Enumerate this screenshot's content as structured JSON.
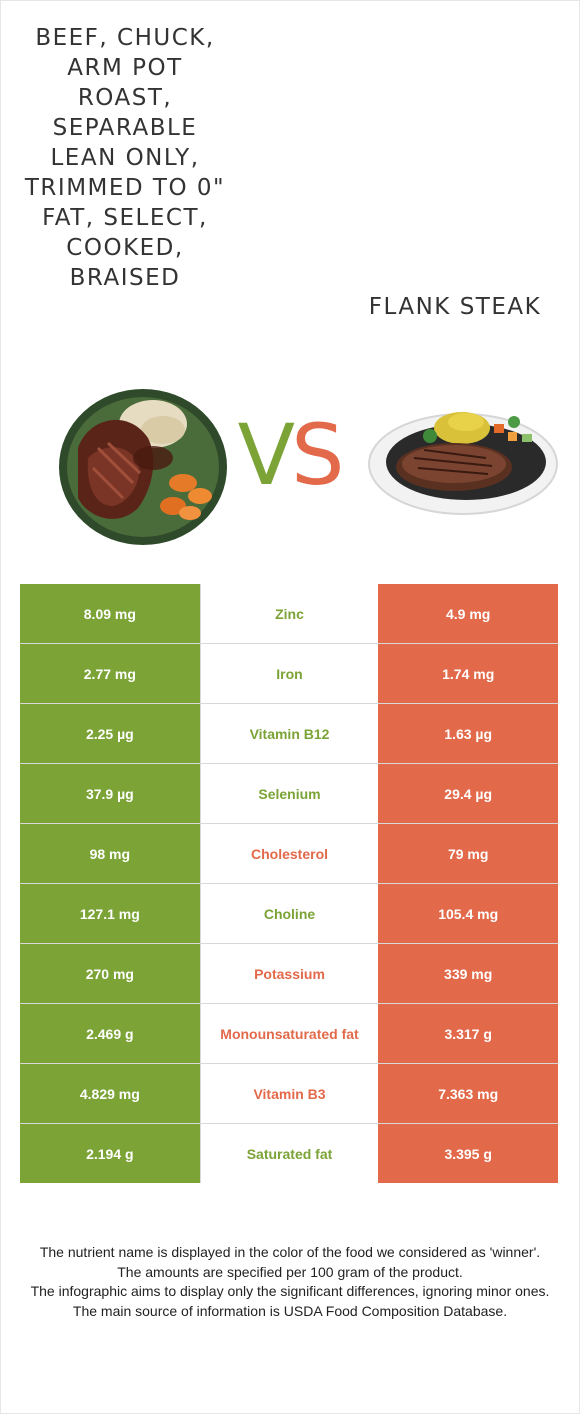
{
  "foods": {
    "left": {
      "name": "Beef, chuck, arm pot roast, separable lean only, trimmed to 0\" fat, select, cooked, braised",
      "color": "#7ba336"
    },
    "right": {
      "name": "Flank steak",
      "color": "#e2694a"
    }
  },
  "vs": {
    "v": "V",
    "s": "S"
  },
  "nutrients": [
    {
      "name": "Zinc",
      "left": "8.09 mg",
      "right": "4.9 mg",
      "winner": "left"
    },
    {
      "name": "Iron",
      "left": "2.77 mg",
      "right": "1.74 mg",
      "winner": "left"
    },
    {
      "name": "Vitamin B12",
      "left": "2.25 µg",
      "right": "1.63 µg",
      "winner": "left"
    },
    {
      "name": "Selenium",
      "left": "37.9 µg",
      "right": "29.4 µg",
      "winner": "left"
    },
    {
      "name": "Cholesterol",
      "left": "98 mg",
      "right": "79 mg",
      "winner": "right"
    },
    {
      "name": "Choline",
      "left": "127.1 mg",
      "right": "105.4 mg",
      "winner": "left"
    },
    {
      "name": "Potassium",
      "left": "270 mg",
      "right": "339 mg",
      "winner": "right"
    },
    {
      "name": "Monounsaturated fat",
      "left": "2.469 g",
      "right": "3.317 g",
      "winner": "right"
    },
    {
      "name": "Vitamin B3",
      "left": "4.829 mg",
      "right": "7.363 mg",
      "winner": "right"
    },
    {
      "name": "Saturated fat",
      "left": "2.194 g",
      "right": "3.395 g",
      "winner": "left"
    }
  ],
  "notes": [
    "The nutrient name is displayed in the color of the food we considered as 'winner'.",
    "The amounts are specified per 100 gram of the product.",
    "The infographic aims to display only the significant differences, ignoring minor ones.",
    "The main source of information is USDA Food Composition Database."
  ]
}
